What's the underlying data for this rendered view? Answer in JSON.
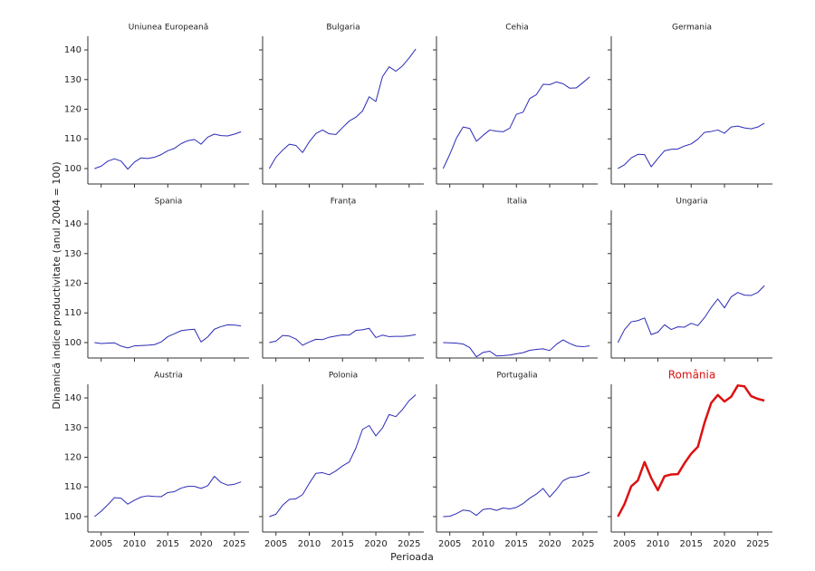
{
  "chart_data": {
    "type": "line",
    "xlabel": "Perioada",
    "ylabel": "Dinamică indice productivitate (anul 2004 = 100)",
    "highlight": "România",
    "xlim": [
      2003,
      2027.2
    ],
    "ylim": [
      94.8,
      144.6
    ],
    "xticks": [
      2005,
      2010,
      2015,
      2020,
      2025
    ],
    "yticks": [
      100,
      110,
      120,
      130,
      140
    ],
    "grid": false,
    "x": [
      2004,
      2005,
      2006,
      2007,
      2008,
      2009,
      2010,
      2011,
      2012,
      2013,
      2014,
      2015,
      2016,
      2017,
      2018,
      2019,
      2020,
      2021,
      2022,
      2023,
      2024,
      2025,
      2026
    ],
    "series": [
      {
        "name": "Uniunea Europeană",
        "color": "#2b2bb8",
        "linewidth": 1,
        "values": [
          100,
          100.8,
          102.5,
          103.3,
          102.5,
          99.8,
          102.2,
          103.6,
          103.4,
          103.8,
          104.7,
          106,
          106.8,
          108.4,
          109.4,
          109.8,
          108.2,
          110.6,
          111.6,
          111.1,
          111.0,
          111.6,
          112.4
        ]
      },
      {
        "name": "Bulgaria",
        "color": "#2b2bb8",
        "linewidth": 1,
        "values": [
          100,
          103.8,
          106.2,
          108.2,
          107.8,
          105.4,
          109,
          111.8,
          113,
          111.7,
          111.5,
          113.8,
          116,
          117.3,
          119.4,
          124.2,
          122.6,
          131,
          134.3,
          132.8,
          134.6,
          137.3,
          140.3
        ]
      },
      {
        "name": "Cehia",
        "color": "#2b2bb8",
        "linewidth": 1,
        "values": [
          100,
          104.8,
          110.3,
          114,
          113.5,
          109.2,
          111.2,
          113,
          112.6,
          112.4,
          113.6,
          118.3,
          119,
          123.6,
          124.9,
          128.4,
          128.3,
          129.2,
          128.6,
          127.1,
          127.2,
          129,
          130.9
        ]
      },
      {
        "name": "Germania",
        "color": "#2b2bb8",
        "linewidth": 1,
        "values": [
          100,
          101.3,
          103.6,
          104.8,
          104.7,
          100.6,
          103.4,
          106,
          106.5,
          106.6,
          107.6,
          108.3,
          109.9,
          112.2,
          112.5,
          113,
          111.9,
          114,
          114.3,
          113.7,
          113.4,
          114,
          115.3
        ]
      },
      {
        "name": "Spania",
        "color": "#2b2bb8",
        "linewidth": 1,
        "values": [
          100,
          99.7,
          99.8,
          99.9,
          98.8,
          98.2,
          98.9,
          99,
          99.1,
          99.3,
          100.2,
          102,
          103,
          104,
          104.3,
          104.5,
          100.2,
          101.9,
          104.5,
          105.4,
          106,
          105.9,
          105.6
        ]
      },
      {
        "name": "Franța",
        "color": "#2b2bb8",
        "linewidth": 1,
        "values": [
          100,
          100.5,
          102.4,
          102.2,
          101.2,
          99.1,
          100.2,
          101.1,
          101,
          101.8,
          102.2,
          102.6,
          102.5,
          104.1,
          104.3,
          104.8,
          101.7,
          102.5,
          102,
          102.1,
          102.1,
          102.3,
          102.7
        ]
      },
      {
        "name": "Italia",
        "color": "#2b2bb8",
        "linewidth": 1,
        "values": [
          100,
          99.9,
          99.8,
          99.5,
          98.3,
          95.2,
          96.7,
          97.1,
          95.5,
          95.6,
          95.8,
          96.2,
          96.6,
          97.4,
          97.7,
          97.9,
          97.3,
          99.4,
          100.9,
          99.7,
          98.8,
          98.6,
          98.9
        ]
      },
      {
        "name": "Ungaria",
        "color": "#2b2bb8",
        "linewidth": 1,
        "values": [
          100,
          104.4,
          107,
          107.4,
          108.3,
          102.7,
          103.5,
          106,
          104.4,
          105.3,
          105.2,
          106.5,
          105.7,
          108.4,
          111.8,
          114.7,
          111.7,
          115.4,
          116.9,
          116,
          115.9,
          116.9,
          119.2
        ]
      },
      {
        "name": "Austria",
        "color": "#2b2bb8",
        "linewidth": 1,
        "values": [
          100,
          101.8,
          104,
          106.4,
          106.2,
          104.2,
          105.5,
          106.6,
          107,
          106.8,
          106.7,
          108.1,
          108.4,
          109.6,
          110.2,
          110.2,
          109.5,
          110.4,
          113.6,
          111.5,
          110.6,
          110.9,
          111.7
        ]
      },
      {
        "name": "Polonia",
        "color": "#2b2bb8",
        "linewidth": 1,
        "values": [
          100,
          100.8,
          103.8,
          105.8,
          106,
          107.4,
          111.2,
          114.6,
          114.8,
          114.1,
          115.4,
          117.1,
          118.4,
          123.1,
          129.4,
          130.7,
          127.2,
          129.9,
          134.4,
          133.7,
          136.1,
          139.1,
          141.1
        ]
      },
      {
        "name": "Portugalia",
        "color": "#2b2bb8",
        "linewidth": 1,
        "values": [
          100,
          100.1,
          101,
          102.2,
          101.9,
          100.4,
          102.4,
          102.7,
          102.1,
          102.9,
          102.6,
          103.1,
          104.4,
          106.2,
          107.6,
          109.5,
          106.6,
          109.1,
          112.1,
          113.2,
          113.4,
          114,
          115
        ]
      },
      {
        "name": "România",
        "color": "#dd1111",
        "linewidth": 2.5,
        "values": [
          100,
          104.3,
          110.2,
          112.2,
          118.4,
          113,
          108.9,
          113.6,
          114.2,
          114.3,
          118,
          121.2,
          123.5,
          131.6,
          138.3,
          141,
          138.8,
          140.4,
          144.2,
          143.9,
          140.6,
          139.7,
          139.1
        ]
      }
    ]
  }
}
